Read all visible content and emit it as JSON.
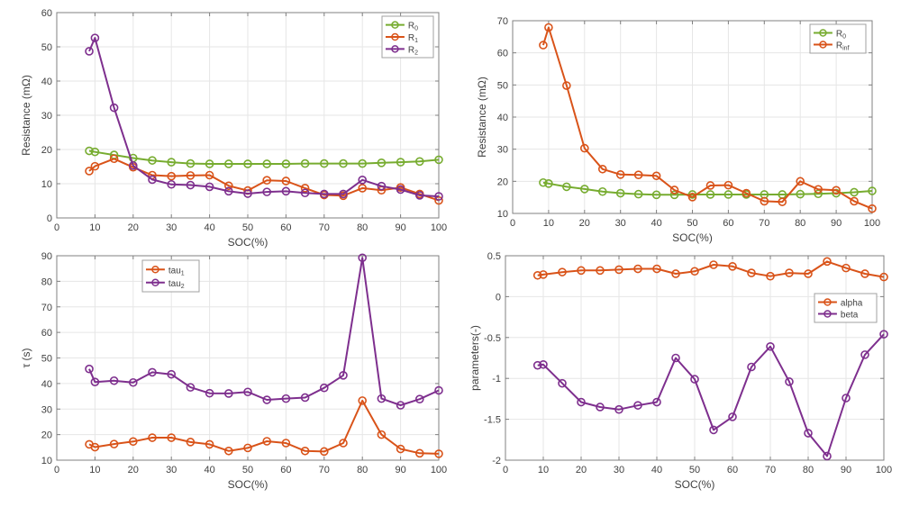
{
  "colors": {
    "green": "#77AC30",
    "orange": "#D95319",
    "purple": "#7E2F8E",
    "axis": "#808080",
    "grid": "#E6E6E6",
    "text": "#404040"
  },
  "chart_data": [
    {
      "id": "resistance-rc",
      "type": "line",
      "title": "",
      "xlabel": "SOC(%)",
      "ylabel": "Resistance (mΩ)",
      "xlim": [
        0,
        100
      ],
      "ylim": [
        0,
        60
      ],
      "xticks": [
        0,
        10,
        20,
        30,
        40,
        50,
        60,
        70,
        80,
        90,
        100
      ],
      "yticks": [
        0,
        10,
        20,
        30,
        40,
        50,
        60
      ],
      "grid": true,
      "legend_position": "top-right",
      "x": [
        8.5,
        10,
        15,
        20,
        25,
        30,
        35,
        40,
        45,
        50,
        55,
        60,
        65,
        70,
        75,
        80,
        85,
        90,
        95,
        100
      ],
      "series": [
        {
          "name": "R0",
          "label_main": "R",
          "label_sub": "0",
          "color": "green",
          "values": [
            19.6,
            19.3,
            18.4,
            17.5,
            16.8,
            16.3,
            15.9,
            15.8,
            15.8,
            15.8,
            15.8,
            15.8,
            15.9,
            15.9,
            15.9,
            15.9,
            16.1,
            16.3,
            16.5,
            17.0
          ]
        },
        {
          "name": "R1",
          "label_main": "R",
          "label_sub": "1",
          "color": "orange",
          "values": [
            13.7,
            15.1,
            17.3,
            14.8,
            12.5,
            12.2,
            12.4,
            12.5,
            9.4,
            8.0,
            11.0,
            10.8,
            8.7,
            6.7,
            6.5,
            8.7,
            8.1,
            8.9,
            7.0,
            5.1
          ]
        },
        {
          "name": "R2",
          "label_main": "R",
          "label_sub": "2",
          "color": "purple",
          "values": [
            48.7,
            52.6,
            32.2,
            15.3,
            11.2,
            9.8,
            9.6,
            9.1,
            7.8,
            7.1,
            7.6,
            7.8,
            7.3,
            7.0,
            7.0,
            11.1,
            9.3,
            8.3,
            6.6,
            6.3
          ]
        }
      ]
    },
    {
      "id": "resistance-inf",
      "type": "line",
      "title": "",
      "xlabel": "SOC(%)",
      "ylabel": "Resistance (mΩ)",
      "xlim": [
        0,
        100
      ],
      "ylim": [
        10,
        70
      ],
      "xticks": [
        0,
        10,
        20,
        30,
        40,
        50,
        60,
        70,
        80,
        90,
        100
      ],
      "yticks": [
        10,
        20,
        30,
        40,
        50,
        60,
        70
      ],
      "grid": true,
      "legend_position": "top-right",
      "x": [
        8.5,
        10,
        15,
        20,
        25,
        30,
        35,
        40,
        45,
        50,
        55,
        60,
        65,
        70,
        75,
        80,
        85,
        90,
        95,
        100
      ],
      "series": [
        {
          "name": "R0",
          "label_main": "R",
          "label_sub": "0",
          "color": "green",
          "values": [
            19.6,
            19.3,
            18.3,
            17.6,
            16.8,
            16.3,
            16.0,
            15.8,
            15.8,
            15.9,
            15.9,
            15.9,
            15.9,
            15.9,
            15.9,
            16.0,
            16.1,
            16.3,
            16.6,
            17.0
          ]
        },
        {
          "name": "Rinf",
          "label_main": "R",
          "label_sub": "inf",
          "color": "orange",
          "values": [
            62.4,
            67.9,
            49.8,
            30.3,
            23.8,
            22.1,
            22.0,
            21.7,
            17.3,
            15.1,
            18.7,
            18.8,
            16.3,
            13.8,
            13.6,
            20.0,
            17.5,
            17.2,
            13.8,
            11.5
          ]
        }
      ]
    },
    {
      "id": "time-constants",
      "type": "line",
      "title": "",
      "xlabel": "SOC(%)",
      "ylabel": "τ (s)",
      "xlim": [
        0,
        100
      ],
      "ylim": [
        10,
        90
      ],
      "xticks": [
        0,
        10,
        20,
        30,
        40,
        50,
        60,
        70,
        80,
        90,
        100
      ],
      "yticks": [
        10,
        20,
        30,
        40,
        50,
        60,
        70,
        80,
        90
      ],
      "grid": true,
      "legend_position": "top-left",
      "x": [
        8.5,
        10,
        15,
        20,
        25,
        30,
        35,
        40,
        45,
        50,
        55,
        60,
        65,
        70,
        75,
        80,
        85,
        90,
        95,
        100
      ],
      "series": [
        {
          "name": "tau1",
          "label_main": "tau",
          "label_sub": "1",
          "color": "orange",
          "values": [
            16.2,
            15.1,
            16.3,
            17.3,
            18.8,
            18.8,
            17.1,
            16.2,
            13.6,
            14.8,
            17.4,
            16.7,
            13.6,
            13.4,
            16.7,
            33.3,
            20.0,
            14.4,
            12.7,
            12.5
          ]
        },
        {
          "name": "tau2",
          "label_main": "tau",
          "label_sub": "2",
          "color": "purple",
          "values": [
            45.7,
            40.6,
            41.1,
            40.4,
            44.4,
            43.6,
            38.5,
            36.2,
            36.1,
            36.7,
            33.6,
            34.1,
            34.5,
            38.3,
            43.2,
            89.2,
            34.1,
            31.5,
            33.9,
            37.3
          ]
        }
      ]
    },
    {
      "id": "alpha-beta",
      "type": "line",
      "title": "",
      "xlabel": "SOC(%)",
      "ylabel": "parameters(-)",
      "xlim": [
        0,
        100
      ],
      "ylim": [
        -2,
        0.5
      ],
      "xticks": [
        0,
        10,
        20,
        30,
        40,
        50,
        60,
        70,
        80,
        90,
        100
      ],
      "yticks": [
        -2,
        -1.5,
        -1,
        -0.5,
        0,
        0.5
      ],
      "grid": true,
      "legend_position": "right",
      "x": [
        8.5,
        10,
        15,
        20,
        25,
        30,
        35,
        40,
        45,
        50,
        55,
        60,
        65,
        70,
        75,
        80,
        85,
        90,
        95,
        100
      ],
      "series": [
        {
          "name": "alpha",
          "label_main": "alpha",
          "label_sub": "",
          "color": "orange",
          "values": [
            0.26,
            0.27,
            0.3,
            0.32,
            0.32,
            0.33,
            0.34,
            0.34,
            0.28,
            0.31,
            0.39,
            0.37,
            0.29,
            0.25,
            0.29,
            0.28,
            0.43,
            0.35,
            0.28,
            0.24
          ]
        },
        {
          "name": "beta",
          "label_main": "beta",
          "label_sub": "",
          "color": "purple",
          "values": [
            -0.84,
            -0.83,
            -1.06,
            -1.29,
            -1.35,
            -1.38,
            -1.33,
            -1.29,
            -0.75,
            -1.01,
            -1.63,
            -1.47,
            -0.86,
            -0.61,
            -1.04,
            -1.67,
            -1.95,
            -1.24,
            -0.71,
            -0.46
          ]
        }
      ]
    }
  ]
}
